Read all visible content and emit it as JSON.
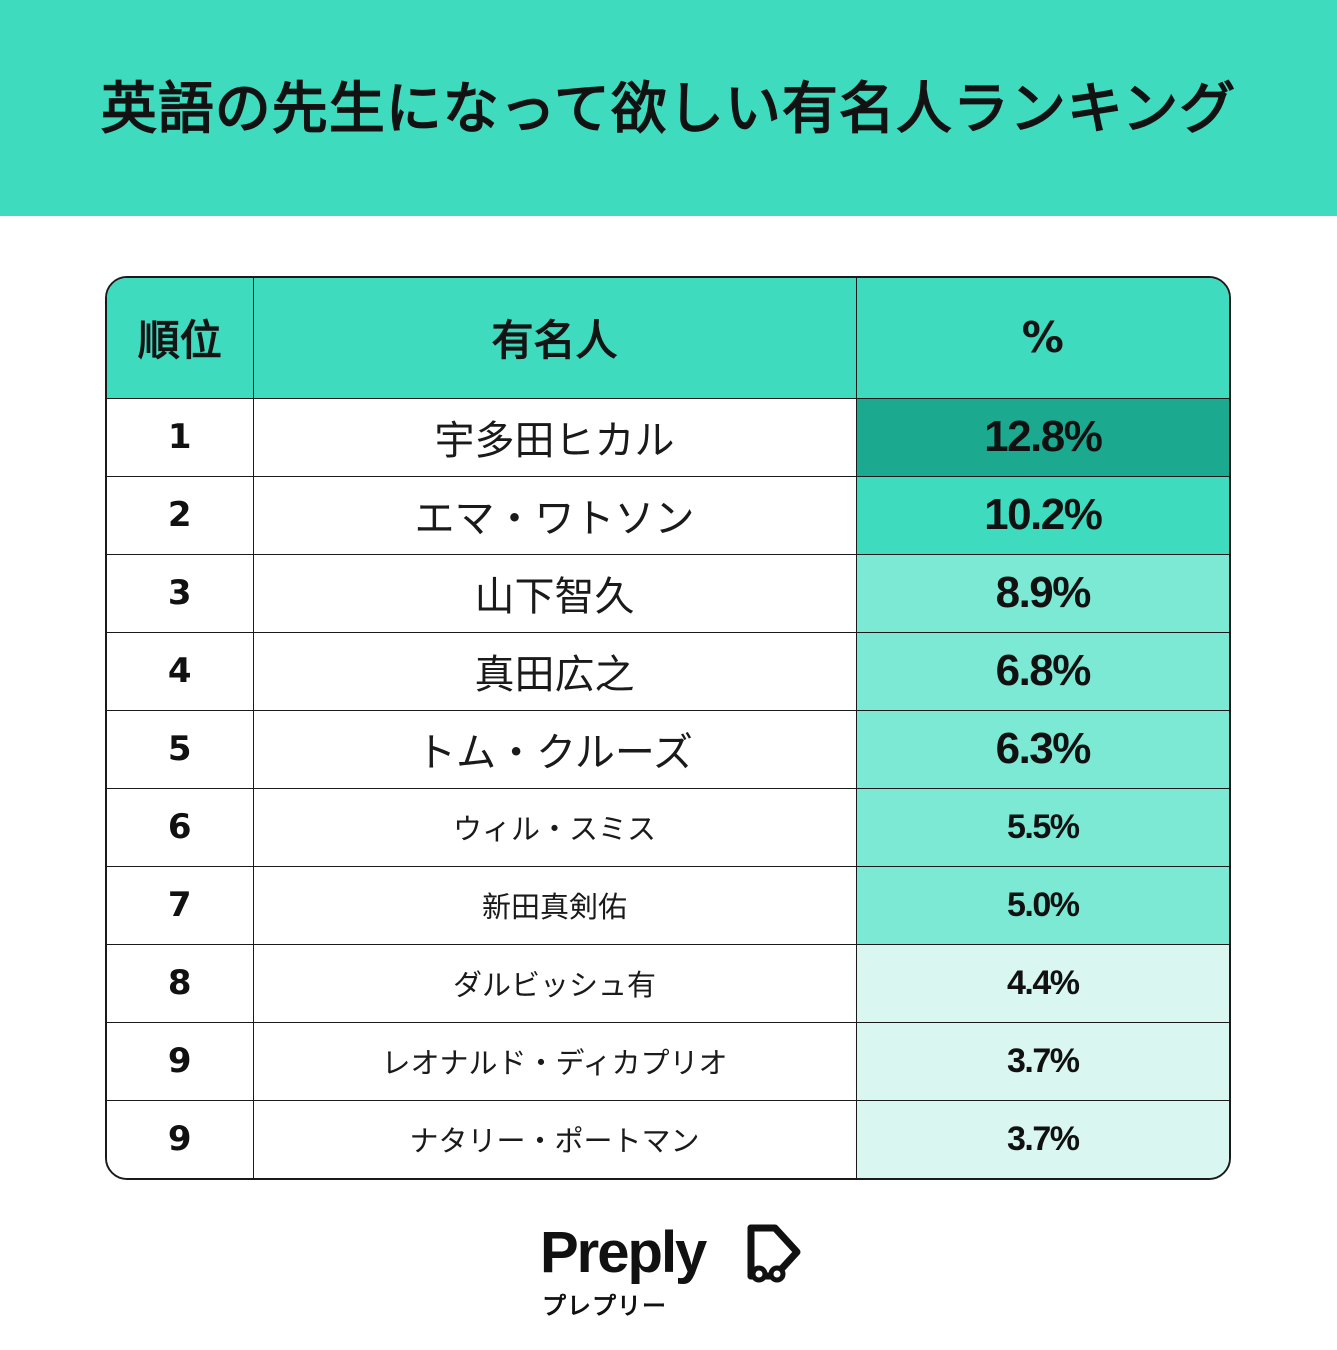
{
  "header": {
    "title": "英語の先生になって欲しい有名人ランキング",
    "background": "#3fdbbf"
  },
  "table": {
    "columns": [
      "順位",
      "有名人",
      "%"
    ],
    "rows": [
      {
        "rank": "1",
        "name": "宇多田ヒカル",
        "percent": "12.8%",
        "value": 12.8,
        "color": "#1ba98f"
      },
      {
        "rank": "2",
        "name": "エマ・ワトソン",
        "percent": "10.2%",
        "value": 10.2,
        "color": "#3fdbbf"
      },
      {
        "rank": "3",
        "name": "山下智久",
        "percent": "8.9%",
        "value": 8.9,
        "color": "#7be9d3"
      },
      {
        "rank": "4",
        "name": "真田広之",
        "percent": "6.8%",
        "value": 6.8,
        "color": "#7be9d3"
      },
      {
        "rank": "5",
        "name": "トム・クルーズ",
        "percent": "6.3%",
        "value": 6.3,
        "color": "#7be9d3"
      },
      {
        "rank": "6",
        "name": "ウィル・スミス",
        "percent": "5.5%",
        "value": 5.5,
        "color": "#7be9d3"
      },
      {
        "rank": "7",
        "name": "新田真剣佑",
        "percent": "5.0%",
        "value": 5.0,
        "color": "#7be9d3"
      },
      {
        "rank": "8",
        "name": "ダルビッシュ有",
        "percent": "4.4%",
        "value": 4.4,
        "color": "#d9f7f0"
      },
      {
        "rank": "9",
        "name": "レオナルド・ディカプリオ",
        "percent": "3.7%",
        "value": 3.7,
        "color": "#d9f7f0"
      },
      {
        "rank": "9",
        "name": "ナタリー・ポートマン",
        "percent": "3.7%",
        "value": 3.7,
        "color": "#d9f7f0"
      }
    ]
  },
  "logo": {
    "wordmark": "Preply",
    "kana": "プレプリー",
    "icon": "preply-icon"
  }
}
